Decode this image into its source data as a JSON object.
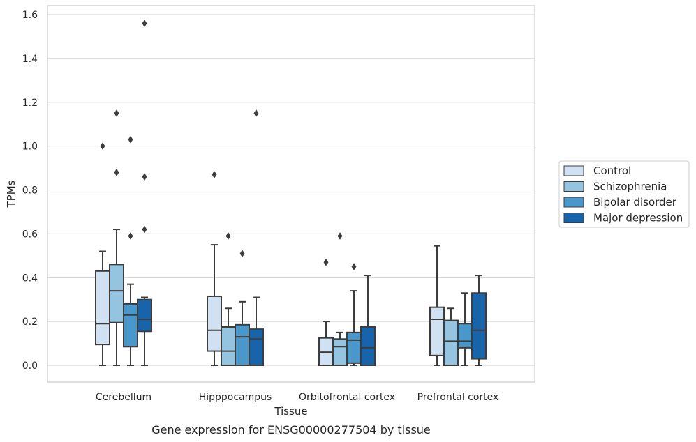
{
  "chart_data": {
    "type": "box",
    "title": "",
    "caption": "Gene expression for ENSG00000277504 by tissue",
    "xlabel": "Tissue",
    "ylabel": "TPMs",
    "ylim": [
      -0.075,
      1.645
    ],
    "yticks": [
      0.0,
      0.2,
      0.4,
      0.6,
      0.8,
      1.0,
      1.2,
      1.4,
      1.6
    ],
    "ytick_labels": [
      "0.0",
      "0.2",
      "0.4",
      "0.6",
      "0.8",
      "1.0",
      "1.2",
      "1.4",
      "1.6"
    ],
    "categories": [
      "Cerebellum",
      "Hipppocampus",
      "Orbitofrontal cortex",
      "Prefrontal cortex"
    ],
    "grid": "horizontal",
    "legend_position": "right",
    "series": [
      {
        "name": "Control",
        "color": "#d0e1f2",
        "boxes": [
          {
            "whislo": 0.0,
            "q1": 0.095,
            "med": 0.19,
            "q3": 0.43,
            "whishi": 0.52,
            "fliers": [
              1.0
            ]
          },
          {
            "whislo": 0.0,
            "q1": 0.065,
            "med": 0.16,
            "q3": 0.315,
            "whishi": 0.55,
            "fliers": [
              0.87
            ]
          },
          {
            "whislo": 0.0,
            "q1": 0.0,
            "med": 0.06,
            "q3": 0.125,
            "whishi": 0.2,
            "fliers": [
              0.47
            ]
          },
          {
            "whislo": 0.0,
            "q1": 0.045,
            "med": 0.21,
            "q3": 0.265,
            "whishi": 0.545,
            "fliers": []
          }
        ]
      },
      {
        "name": "Schizophrenia",
        "color": "#94c4df",
        "boxes": [
          {
            "whislo": 0.0,
            "q1": 0.195,
            "med": 0.34,
            "q3": 0.46,
            "whishi": 0.62,
            "fliers": [
              0.88,
              1.15
            ]
          },
          {
            "whislo": 0.0,
            "q1": 0.0,
            "med": 0.065,
            "q3": 0.175,
            "whishi": 0.26,
            "fliers": [
              0.59
            ]
          },
          {
            "whislo": 0.0,
            "q1": 0.0,
            "med": 0.085,
            "q3": 0.12,
            "whishi": 0.15,
            "fliers": [
              0.59
            ]
          },
          {
            "whislo": 0.0,
            "q1": 0.0,
            "med": 0.11,
            "q3": 0.205,
            "whishi": 0.26,
            "fliers": []
          }
        ]
      },
      {
        "name": "Bipolar disorder",
        "color": "#4a98c9",
        "boxes": [
          {
            "whislo": 0.0,
            "q1": 0.085,
            "med": 0.23,
            "q3": 0.28,
            "whishi": 0.37,
            "fliers": [
              0.59,
              1.03
            ]
          },
          {
            "whislo": 0.0,
            "q1": 0.0,
            "med": 0.13,
            "q3": 0.185,
            "whishi": 0.29,
            "fliers": [
              0.51
            ]
          },
          {
            "whislo": 0.0,
            "q1": 0.01,
            "med": 0.115,
            "q3": 0.15,
            "whishi": 0.34,
            "fliers": [
              0.45
            ]
          },
          {
            "whislo": 0.0,
            "q1": 0.08,
            "med": 0.11,
            "q3": 0.19,
            "whishi": 0.33,
            "fliers": []
          }
        ]
      },
      {
        "name": "Major depression",
        "color": "#1764ab",
        "boxes": [
          {
            "whislo": 0.0,
            "q1": 0.155,
            "med": 0.21,
            "q3": 0.3,
            "whishi": 0.31,
            "fliers": [
              0.62,
              0.86,
              1.56
            ]
          },
          {
            "whislo": 0.0,
            "q1": 0.0,
            "med": 0.12,
            "q3": 0.165,
            "whishi": 0.31,
            "fliers": [
              1.15
            ]
          },
          {
            "whislo": 0.0,
            "q1": 0.0,
            "med": 0.08,
            "q3": 0.175,
            "whishi": 0.41,
            "fliers": []
          },
          {
            "whislo": 0.0,
            "q1": 0.03,
            "med": 0.16,
            "q3": 0.33,
            "whishi": 0.41,
            "fliers": []
          }
        ]
      }
    ]
  }
}
